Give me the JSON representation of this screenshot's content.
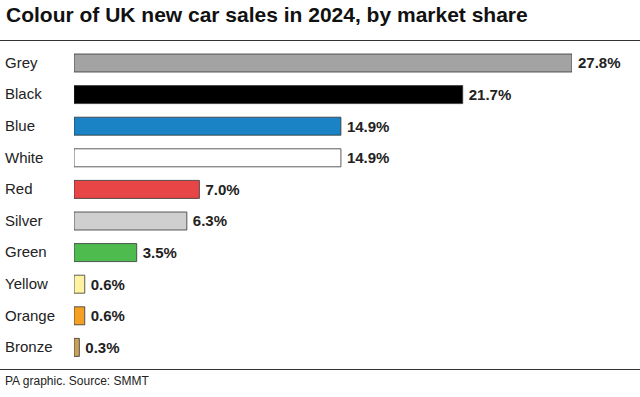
{
  "chart_data": {
    "type": "bar",
    "orientation": "horizontal",
    "title": "Colour of UK new car sales in 2024, by market share",
    "source": "PA graphic. Source: SMMT",
    "categories": [
      "Grey",
      "Black",
      "Blue",
      "White",
      "Red",
      "Silver",
      "Green",
      "Yellow",
      "Orange",
      "Bronze"
    ],
    "values": [
      27.8,
      21.7,
      14.9,
      14.9,
      7.0,
      6.3,
      3.5,
      0.6,
      0.6,
      0.3
    ],
    "value_labels": [
      "27.8%",
      "21.7%",
      "14.9%",
      "14.9%",
      "7.0%",
      "6.3%",
      "3.5%",
      "0.6%",
      "0.6%",
      "0.3%"
    ],
    "colors": [
      "#a3a3a3",
      "#000000",
      "#1a83c5",
      "#ffffff",
      "#e84546",
      "#cfcfcf",
      "#4dbb4d",
      "#fff3a3",
      "#f4a024",
      "#c9a15a"
    ],
    "data_labels": true,
    "tick_labels": "y",
    "grid": false
  }
}
